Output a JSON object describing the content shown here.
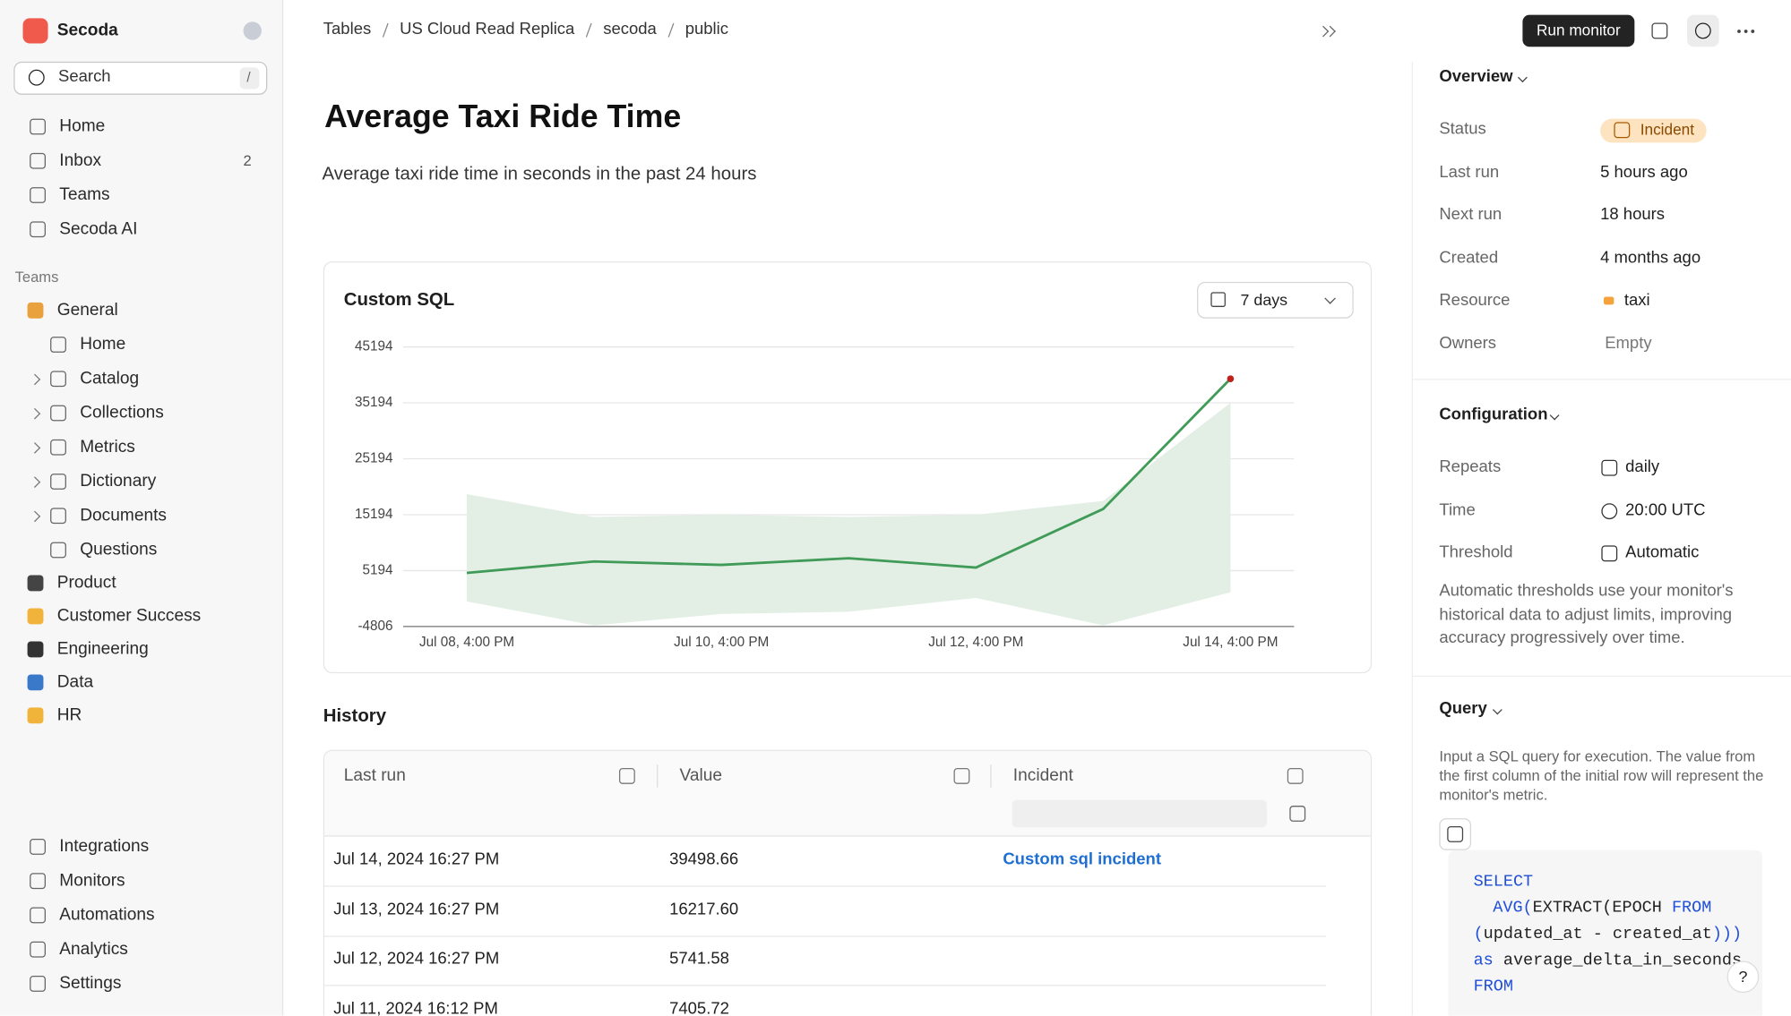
{
  "sidebar": {
    "workspace": "Secoda",
    "search": {
      "placeholder": "Search",
      "shortcut": "/"
    },
    "nav": [
      {
        "label": "Home"
      },
      {
        "label": "Inbox",
        "badge": 2
      },
      {
        "label": "Teams"
      },
      {
        "label": "Secoda AI"
      }
    ],
    "teams_heading": "Teams",
    "teams": [
      {
        "label": "General",
        "children": [
          {
            "label": "Home"
          },
          {
            "label": "Catalog"
          },
          {
            "label": "Collections"
          },
          {
            "label": "Metrics"
          },
          {
            "label": "Dictionary"
          },
          {
            "label": "Documents"
          },
          {
            "label": "Questions"
          }
        ]
      },
      {
        "label": "Product"
      },
      {
        "label": "Customer Success"
      },
      {
        "label": "Engineering"
      },
      {
        "label": "Data"
      },
      {
        "label": "HR"
      }
    ],
    "footer_nav": [
      {
        "label": "Integrations"
      },
      {
        "label": "Monitors"
      },
      {
        "label": "Automations"
      },
      {
        "label": "Analytics"
      },
      {
        "label": "Settings"
      }
    ]
  },
  "breadcrumbs": [
    "Tables",
    "US Cloud Read Replica",
    "secoda",
    "public"
  ],
  "actions": {
    "run_monitor": "Run monitor"
  },
  "monitor": {
    "title": "Average Taxi Ride Time",
    "description": "Average taxi ride time in seconds in the past 24 hours"
  },
  "chart_data": {
    "type": "line",
    "title": "Custom SQL",
    "range": "7 days",
    "categories": [
      "Jul 08, 4:00 PM",
      null,
      "Jul 10, 4:00 PM",
      null,
      "Jul 12, 4:00 PM",
      null,
      "Jul 14, 4:00 PM"
    ],
    "values": [
      4786,
      6827,
      6214,
      7405.72,
      5741.58,
      16217.6,
      39498.66
    ],
    "color": "#3f9b57",
    "band": {
      "lower": [
        -316,
        -4600,
        -2561,
        -2153,
        296,
        -4600,
        1316
      ],
      "upper": [
        18868,
        14786,
        15194,
        14786,
        15194,
        17643,
        35194
      ],
      "color": "#e3efe5"
    },
    "incident_color": "#c0221b",
    "ylim": [
      -4806,
      45194
    ],
    "yticks": [
      -4806,
      5194,
      15194,
      25194,
      35194,
      45194
    ],
    "grid": true
  },
  "history": {
    "title": "History",
    "columns": [
      "Last run",
      "Value",
      "Incident"
    ],
    "rows": [
      [
        "Jul 14, 2024 16:27 PM",
        "39498.66",
        "Custom sql incident"
      ],
      [
        "Jul 13, 2024 16:27 PM",
        "16217.60"
      ],
      [
        "Jul 12, 2024 16:27 PM",
        "5741.58"
      ],
      [
        "Jul 11, 2024 16:12 PM",
        "7405.72"
      ]
    ]
  },
  "details": {
    "overview": {
      "title": "Overview",
      "fields": [
        {
          "label": "Status",
          "value": "Incident"
        },
        {
          "label": "Last run",
          "value": "5 hours ago"
        },
        {
          "label": "Next run",
          "value": "18 hours"
        },
        {
          "label": "Created",
          "value": "4 months ago"
        },
        {
          "label": "Resource",
          "value": "taxi"
        },
        {
          "label": "Owners",
          "value": "Empty"
        }
      ]
    },
    "configuration": {
      "title": "Configuration",
      "fields": [
        {
          "label": "Repeats",
          "value": "daily"
        },
        {
          "label": "Time",
          "value": "20:00 UTC"
        },
        {
          "label": "Threshold",
          "value": "Automatic"
        }
      ],
      "note": "Automatic thresholds use your monitor's historical data to adjust limits, improving accuracy progressively over time."
    },
    "query": {
      "title": "Query",
      "description": "Input a SQL query for execution. The value from the first column of the initial row will represent the monitor's metric.",
      "code": [
        [
          {
            "text": "SELECT",
            "keyword": true
          }
        ],
        [
          {
            "text": "AVG(",
            "keyword": true
          },
          {
            "text": "EXTRACT(EPOCH "
          },
          {
            "text": "FROM",
            "keyword": true
          }
        ],
        [
          {
            "text": "(",
            "keyword": true
          },
          {
            "text": "updated_at - created_at"
          },
          {
            "text": ")))",
            "keyword": true
          }
        ],
        [
          {
            "text": "as",
            "keyword": true
          },
          {
            "text": " average_delta_in_seconds"
          }
        ],
        [
          {
            "text": "FROM",
            "keyword": true
          }
        ]
      ]
    }
  },
  "help": "?"
}
